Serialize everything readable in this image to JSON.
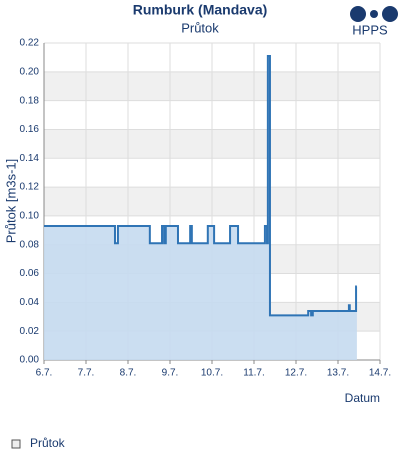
{
  "chart_data": {
    "type": "line",
    "title": "Rumburk (Mandava)",
    "subtitle": "Průtok",
    "logo_text": "HPPS",
    "y_label": "Průtok [m3s-1]",
    "x_label": "Datum",
    "color": "#2f74b5",
    "fill_color": "#c5daf0",
    "grid": true,
    "xlim": [
      6,
      14
    ],
    "ylim": [
      0,
      0.22
    ],
    "xticks": [
      {
        "value": 6,
        "label": "6.7."
      },
      {
        "value": 7,
        "label": "7.7."
      },
      {
        "value": 8,
        "label": "8.7."
      },
      {
        "value": 9,
        "label": "9.7."
      },
      {
        "value": 10,
        "label": "10.7."
      },
      {
        "value": 11,
        "label": "11.7."
      },
      {
        "value": 12,
        "label": "12.7."
      },
      {
        "value": 13,
        "label": "13.7."
      },
      {
        "value": 14,
        "label": "14.7."
      }
    ],
    "yticks": [
      {
        "value": 0,
        "label": "0.00"
      },
      {
        "value": 0.02,
        "label": "0.02"
      },
      {
        "value": 0.04,
        "label": "0.04"
      },
      {
        "value": 0.06,
        "label": "0.06"
      },
      {
        "value": 0.08,
        "label": "0.08"
      },
      {
        "value": 0.1,
        "label": "0.10"
      },
      {
        "value": 0.12,
        "label": "0.12"
      },
      {
        "value": 0.14,
        "label": "0.14"
      },
      {
        "value": 0.16,
        "label": "0.16"
      },
      {
        "value": 0.18,
        "label": "0.18"
      },
      {
        "value": 0.2,
        "label": "0.20"
      },
      {
        "value": 0.22,
        "label": "0.22"
      }
    ],
    "series": [
      {
        "name": "Průtok",
        "x": [
          6,
          7.69,
          7.69,
          7.76,
          7.76,
          8.52,
          8.52,
          8.81,
          8.81,
          8.86,
          8.86,
          8.9,
          8.9,
          9.19,
          9.19,
          9.48,
          9.48,
          9.52,
          9.52,
          9.9,
          9.9,
          10.05,
          10.05,
          10.43,
          10.43,
          10.62,
          10.62,
          11.26,
          11.26,
          11.31,
          11.31,
          11.33,
          11.33,
          11.38,
          11.38,
          12.29,
          12.29,
          12.36,
          12.36,
          12.4,
          12.4,
          12.48,
          12.48,
          13.26,
          13.26,
          13.28,
          13.28,
          13.43,
          13.43,
          13.45
        ],
        "values": [
          0.093,
          0.093,
          0.081,
          0.081,
          0.093,
          0.093,
          0.081,
          0.081,
          0.093,
          0.093,
          0.081,
          0.081,
          0.093,
          0.093,
          0.081,
          0.081,
          0.093,
          0.093,
          0.081,
          0.081,
          0.093,
          0.093,
          0.081,
          0.081,
          0.093,
          0.093,
          0.081,
          0.081,
          0.093,
          0.093,
          0.081,
          0.081,
          0.211,
          0.211,
          0.031,
          0.031,
          0.034,
          0.034,
          0.031,
          0.031,
          0.034,
          0.034,
          0.034,
          0.034,
          0.038,
          0.038,
          0.034,
          0.034,
          0.051,
          0.051
        ]
      }
    ]
  }
}
